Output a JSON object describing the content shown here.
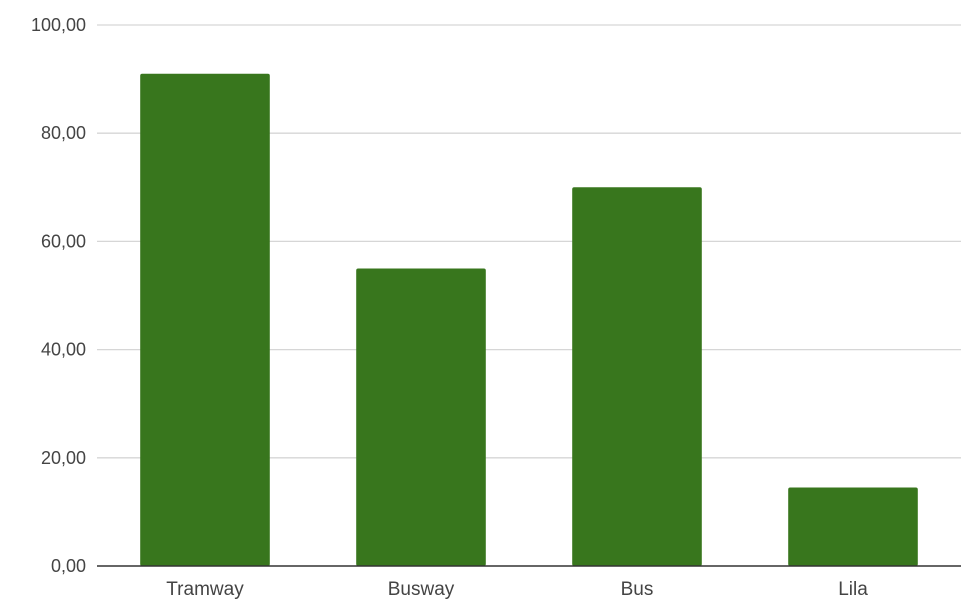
{
  "chart_data": {
    "type": "bar",
    "title": "",
    "xlabel": "",
    "ylabel": "",
    "categories": [
      "Tramway",
      "Busway",
      "Bus",
      "Lila"
    ],
    "values": [
      91,
      55,
      70,
      14.5
    ],
    "ylim": [
      0,
      100
    ],
    "yticks": [
      0,
      20,
      40,
      60,
      80,
      100
    ],
    "ytick_labels": [
      "0,00",
      "20,00",
      "40,00",
      "60,00",
      "80,00",
      "100,00"
    ],
    "grid": true,
    "legend": "none",
    "bar_color": "#38761d"
  }
}
